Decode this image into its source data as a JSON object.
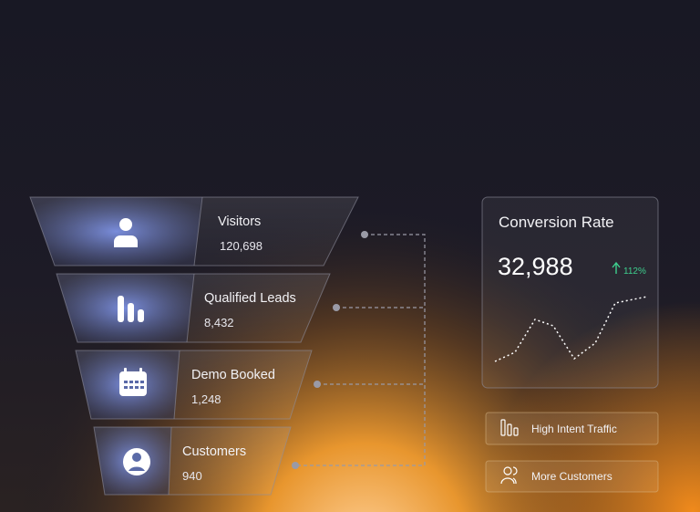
{
  "funnel": [
    {
      "label": "Visitors",
      "value": "120,698"
    },
    {
      "label": "Qualified Leads",
      "value": "8,432"
    },
    {
      "label": "Demo Booked",
      "value": "1,248"
    },
    {
      "label": "Customers",
      "value": "940"
    }
  ],
  "conversion": {
    "title": "Conversion Rate",
    "value": "32,988",
    "change": "112%"
  },
  "tags": [
    "High Intent Traffic",
    "More Customers"
  ]
}
